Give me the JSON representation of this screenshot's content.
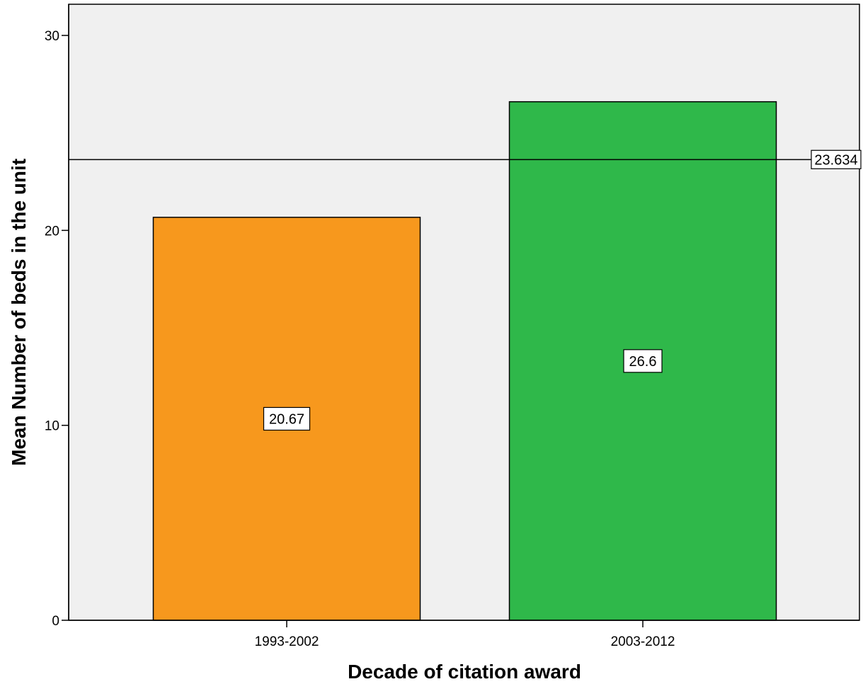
{
  "chart_data": {
    "type": "bar",
    "title": "",
    "xlabel": "Decade of citation award",
    "ylabel": "Mean Number of beds in the unit",
    "categories": [
      "1993-2002",
      "2003-2012"
    ],
    "values": [
      20.67,
      26.6
    ],
    "data_labels": [
      "20.67",
      "26.6"
    ],
    "bar_colors": [
      "#f7981d",
      "#2fb84a"
    ],
    "ylim": [
      0,
      30
    ],
    "yticks": [
      0,
      10,
      20,
      30
    ],
    "ytick_labels": [
      "0",
      "10",
      "20",
      "30"
    ],
    "reference_line": {
      "value": 23.634,
      "label": "23.634"
    },
    "grid": false,
    "background_color": "#f0f0f0"
  }
}
